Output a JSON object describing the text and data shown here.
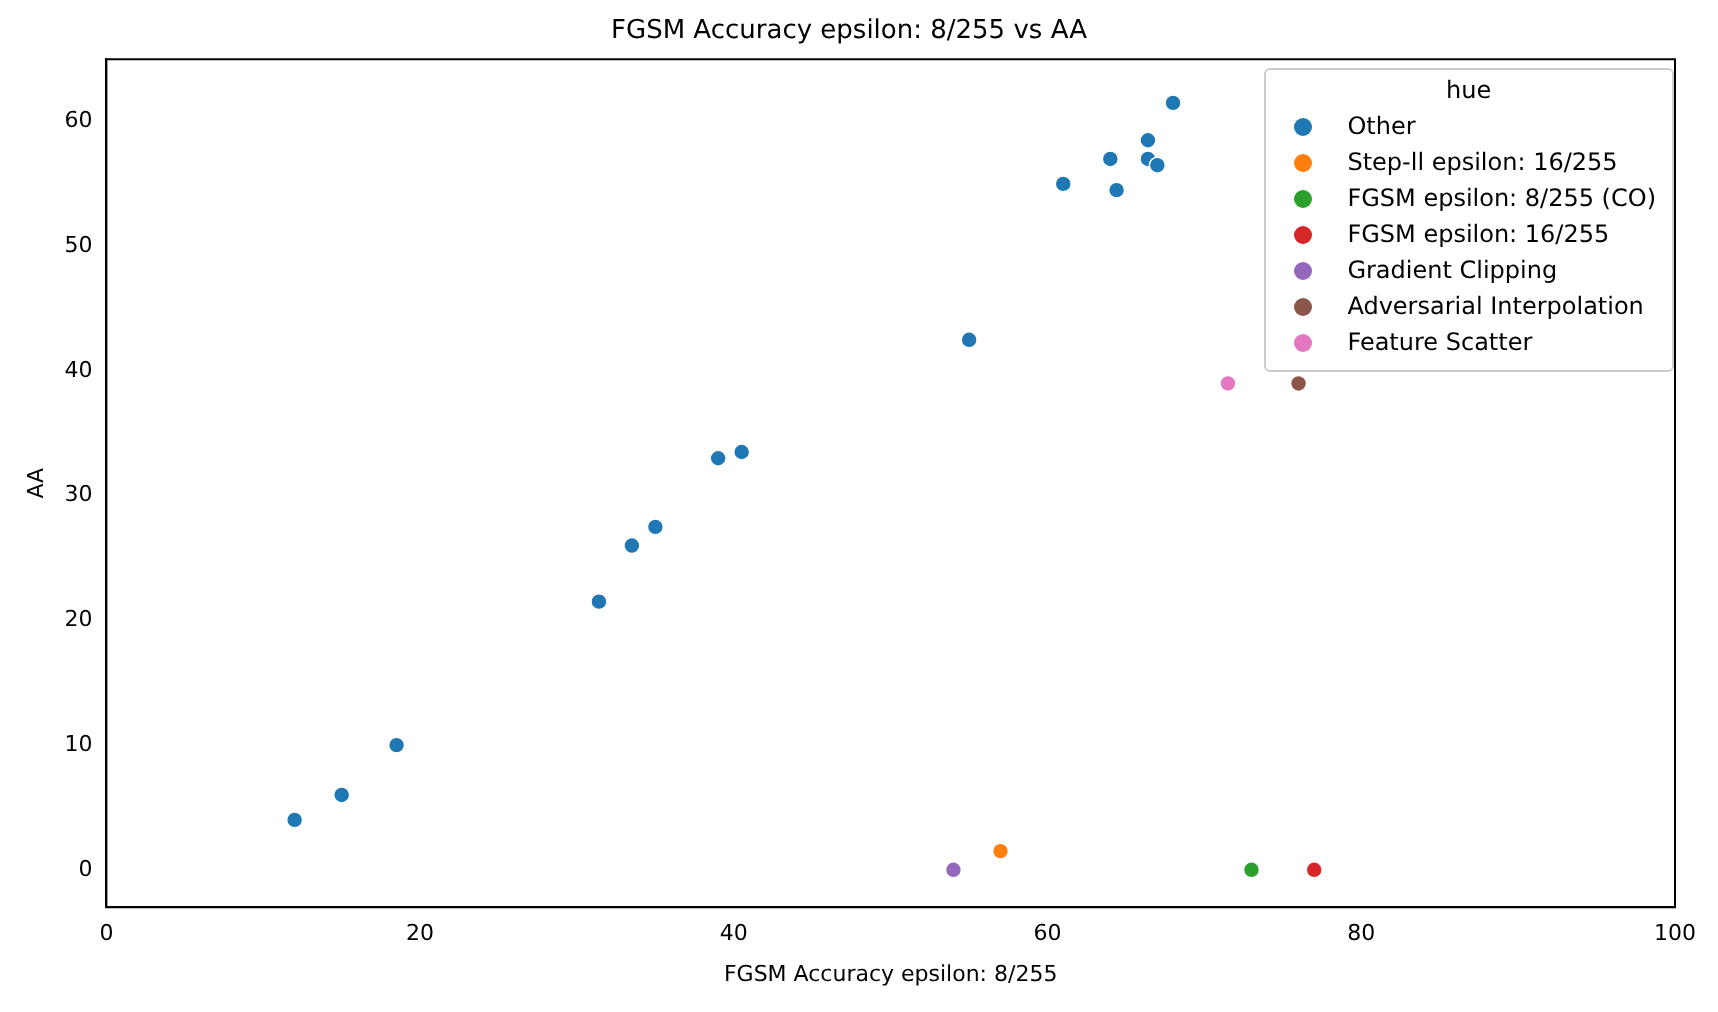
{
  "chart_data": {
    "type": "scatter",
    "title": "FGSM Accuracy epsilon: 8/255 vs AA",
    "xlabel": "FGSM Accuracy epsilon: 8/255",
    "ylabel": "AA",
    "legend_title": "hue",
    "legend": "top right",
    "grid": false,
    "marker": "circle",
    "xlim": [
      0,
      100
    ],
    "xticks": [
      0,
      20,
      40,
      60,
      80,
      100
    ],
    "ylim": [
      -3,
      65
    ],
    "yticks": [
      0,
      10,
      20,
      30,
      40,
      50,
      60
    ],
    "series": [
      {
        "name": "Other",
        "color": "#1f77b4",
        "x": [
          12,
          15,
          18.5,
          31.4,
          33.5,
          35,
          39,
          40.5,
          55,
          61,
          64,
          64.4,
          66.4,
          66.4,
          67,
          68
        ],
        "values": [
          4,
          6,
          10,
          21.5,
          26,
          27.5,
          33,
          33.5,
          42.5,
          55,
          57,
          54.5,
          58.5,
          57,
          56.5,
          61.5
        ]
      },
      {
        "name": "Step-ll epsilon: 16/255",
        "color": "#ff7f0e",
        "x": [
          57
        ],
        "values": [
          1.5
        ]
      },
      {
        "name": "FGSM epsilon: 8/255 (CO)",
        "color": "#2ca02c",
        "x": [
          73
        ],
        "values": [
          0
        ]
      },
      {
        "name": "FGSM epsilon: 16/255",
        "color": "#d62728",
        "x": [
          77
        ],
        "values": [
          0
        ]
      },
      {
        "name": "Gradient Clipping",
        "color": "#9467bd",
        "x": [
          54
        ],
        "values": [
          0
        ]
      },
      {
        "name": "Adversarial Interpolation",
        "color": "#8c564b",
        "x": [
          76
        ],
        "values": [
          39
        ]
      },
      {
        "name": "Feature Scatter",
        "color": "#e377c2",
        "x": [
          71.5
        ],
        "values": [
          39
        ]
      }
    ]
  }
}
